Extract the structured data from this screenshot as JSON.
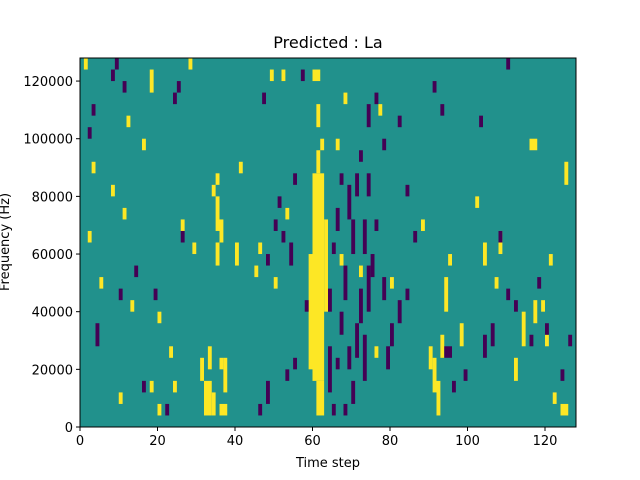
{
  "chart_data": {
    "type": "heatmap",
    "title": "Predicted : La",
    "xlabel": "Time step",
    "ylabel": "Frequency (Hz)",
    "xlim": [
      0,
      128
    ],
    "ylim": [
      0,
      128000
    ],
    "x_ticks": [
      0,
      20,
      40,
      60,
      80,
      100,
      120
    ],
    "y_ticks": [
      0,
      20000,
      40000,
      60000,
      80000,
      100000,
      120000
    ],
    "x_tick_labels": [
      "0",
      "20",
      "40",
      "60",
      "80",
      "100",
      "120"
    ],
    "y_tick_labels": [
      "0",
      "20000",
      "40000",
      "60000",
      "80000",
      "100000",
      "120000"
    ],
    "grid": false,
    "colors": {
      "background": "#21918c",
      "high": "#fde725",
      "low": "#440154"
    },
    "cells_note_units": "each cell = [time_step_start, time_step_end, freq_start_hz, freq_end_hz, level] where level 1=high, -1=low",
    "cells": [
      [
        60,
        63,
        16000,
        88000,
        1
      ],
      [
        61,
        63,
        4000,
        16000,
        1
      ],
      [
        61,
        62,
        88000,
        96000,
        1
      ],
      [
        62,
        63,
        96000,
        100000,
        1
      ],
      [
        59,
        60,
        20000,
        60000,
        1
      ],
      [
        63,
        64,
        40000,
        72000,
        1
      ],
      [
        60,
        62,
        120000,
        124000,
        1
      ],
      [
        61,
        62,
        104000,
        112000,
        1
      ],
      [
        32,
        34,
        4000,
        16000,
        1
      ],
      [
        34,
        35,
        4000,
        12000,
        1
      ],
      [
        36,
        38,
        4000,
        8000,
        1
      ],
      [
        37,
        38,
        12000,
        24000,
        1
      ],
      [
        31,
        32,
        16000,
        24000,
        1
      ],
      [
        33,
        34,
        20000,
        28000,
        1
      ],
      [
        36,
        37,
        20000,
        24000,
        1
      ],
      [
        35,
        36,
        68000,
        80000,
        1
      ],
      [
        35,
        36,
        56000,
        64000,
        1
      ],
      [
        36,
        37,
        64000,
        72000,
        1
      ],
      [
        40,
        41,
        56000,
        64000,
        1
      ],
      [
        41,
        42,
        88000,
        92000,
        1
      ],
      [
        35,
        36,
        88000,
        84000,
        1
      ],
      [
        34,
        35,
        80000,
        84000,
        1
      ],
      [
        29,
        30,
        60000,
        64000,
        1
      ],
      [
        26,
        27,
        68000,
        72000,
        1
      ],
      [
        13,
        14,
        40000,
        44000,
        1
      ],
      [
        20,
        21,
        36000,
        40000,
        1
      ],
      [
        23,
        24,
        24000,
        28000,
        1
      ],
      [
        18,
        19,
        12000,
        16000,
        1
      ],
      [
        24,
        25,
        12000,
        16000,
        1
      ],
      [
        20,
        21,
        8000,
        4000,
        1
      ],
      [
        10,
        11,
        8000,
        12000,
        1
      ],
      [
        2,
        3,
        64000,
        68000,
        1
      ],
      [
        5,
        6,
        48000,
        52000,
        1
      ],
      [
        11,
        12,
        72000,
        76000,
        1
      ],
      [
        3,
        4,
        88000,
        92000,
        1
      ],
      [
        8,
        9,
        80000,
        84000,
        1
      ],
      [
        12,
        13,
        104000,
        108000,
        1
      ],
      [
        18,
        19,
        116000,
        124000,
        1
      ],
      [
        28,
        29,
        124000,
        128000,
        1
      ],
      [
        1,
        2,
        124000,
        128000,
        1
      ],
      [
        16,
        17,
        96000,
        100000,
        1
      ],
      [
        90,
        91,
        20000,
        28000,
        1
      ],
      [
        91,
        92,
        12000,
        24000,
        1
      ],
      [
        92,
        93,
        4000,
        16000,
        1
      ],
      [
        93,
        94,
        24000,
        32000,
        1
      ],
      [
        94,
        95,
        40000,
        52000,
        1
      ],
      [
        95,
        96,
        56000,
        60000,
        1
      ],
      [
        98,
        99,
        28000,
        36000,
        1
      ],
      [
        104,
        105,
        56000,
        64000,
        1
      ],
      [
        108,
        109,
        60000,
        68000,
        1
      ],
      [
        112,
        113,
        16000,
        24000,
        1
      ],
      [
        114,
        115,
        28000,
        40000,
        1
      ],
      [
        117,
        118,
        36000,
        44000,
        1
      ],
      [
        119,
        120,
        40000,
        44000,
        1
      ],
      [
        120,
        121,
        28000,
        32000,
        1
      ],
      [
        121,
        122,
        56000,
        60000,
        1
      ],
      [
        116,
        118,
        96000,
        100000,
        1
      ],
      [
        125,
        126,
        84000,
        92000,
        1
      ],
      [
        124,
        126,
        8000,
        4000,
        1
      ],
      [
        122,
        123,
        8000,
        12000,
        1
      ],
      [
        107,
        108,
        48000,
        52000,
        1
      ],
      [
        102,
        103,
        76000,
        80000,
        1
      ],
      [
        88,
        89,
        68000,
        72000,
        1
      ],
      [
        80,
        81,
        48000,
        52000,
        1
      ],
      [
        77,
        78,
        108000,
        112000,
        1
      ],
      [
        68,
        69,
        112000,
        116000,
        1
      ],
      [
        66,
        67,
        96000,
        100000,
        1
      ],
      [
        67,
        68,
        56000,
        60000,
        1
      ],
      [
        72,
        73,
        52000,
        56000,
        1
      ],
      [
        76,
        77,
        24000,
        28000,
        1
      ],
      [
        46,
        47,
        60000,
        64000,
        1
      ],
      [
        50,
        51,
        48000,
        52000,
        1
      ],
      [
        45,
        46,
        52000,
        56000,
        1
      ],
      [
        53,
        54,
        72000,
        76000,
        1
      ],
      [
        49,
        50,
        120000,
        124000,
        1
      ],
      [
        52,
        53,
        124000,
        120000,
        1
      ],
      [
        64,
        65,
        12000,
        28000,
        -1
      ],
      [
        65,
        66,
        4000,
        8000,
        -1
      ],
      [
        66,
        67,
        20000,
        24000,
        -1
      ],
      [
        67,
        68,
        32000,
        40000,
        -1
      ],
      [
        68,
        69,
        44000,
        56000,
        -1
      ],
      [
        69,
        70,
        20000,
        28000,
        -1
      ],
      [
        70,
        71,
        8000,
        16000,
        -1
      ],
      [
        71,
        72,
        24000,
        36000,
        -1
      ],
      [
        72,
        73,
        36000,
        48000,
        -1
      ],
      [
        73,
        74,
        16000,
        32000,
        -1
      ],
      [
        73,
        74,
        60000,
        72000,
        -1
      ],
      [
        74,
        75,
        40000,
        56000,
        -1
      ],
      [
        75,
        76,
        52000,
        60000,
        -1
      ],
      [
        70,
        71,
        60000,
        72000,
        -1
      ],
      [
        69,
        70,
        72000,
        84000,
        -1
      ],
      [
        71,
        72,
        80000,
        88000,
        -1
      ],
      [
        67,
        68,
        84000,
        88000,
        -1
      ],
      [
        66,
        67,
        68000,
        76000,
        -1
      ],
      [
        65,
        66,
        60000,
        64000,
        -1
      ],
      [
        64,
        65,
        40000,
        48000,
        -1
      ],
      [
        68,
        69,
        4000,
        8000,
        -1
      ],
      [
        74,
        75,
        80000,
        88000,
        -1
      ],
      [
        76,
        77,
        68000,
        72000,
        -1
      ],
      [
        78,
        79,
        44000,
        52000,
        -1
      ],
      [
        80,
        81,
        28000,
        36000,
        -1
      ],
      [
        82,
        83,
        36000,
        44000,
        -1
      ],
      [
        79,
        80,
        20000,
        28000,
        -1
      ],
      [
        84,
        85,
        44000,
        48000,
        -1
      ],
      [
        86,
        87,
        64000,
        68000,
        -1
      ],
      [
        84,
        85,
        80000,
        84000,
        -1
      ],
      [
        72,
        73,
        92000,
        96000,
        -1
      ],
      [
        74,
        75,
        104000,
        112000,
        -1
      ],
      [
        76,
        77,
        112000,
        116000,
        -1
      ],
      [
        78,
        79,
        96000,
        100000,
        -1
      ],
      [
        82,
        83,
        104000,
        108000,
        -1
      ],
      [
        54,
        55,
        56000,
        64000,
        -1
      ],
      [
        52,
        53,
        64000,
        68000,
        -1
      ],
      [
        50,
        51,
        68000,
        72000,
        -1
      ],
      [
        48,
        49,
        56000,
        60000,
        -1
      ],
      [
        51,
        52,
        76000,
        80000,
        -1
      ],
      [
        55,
        56,
        84000,
        88000,
        -1
      ],
      [
        58,
        59,
        40000,
        44000,
        -1
      ],
      [
        55,
        56,
        20000,
        24000,
        -1
      ],
      [
        53,
        54,
        16000,
        20000,
        -1
      ],
      [
        48,
        49,
        8000,
        16000,
        -1
      ],
      [
        46,
        47,
        4000,
        8000,
        -1
      ],
      [
        57,
        58,
        120000,
        124000,
        -1
      ],
      [
        47,
        48,
        112000,
        116000,
        -1
      ],
      [
        22,
        23,
        4000,
        8000,
        -1
      ],
      [
        16,
        17,
        12000,
        16000,
        -1
      ],
      [
        10,
        11,
        44000,
        48000,
        -1
      ],
      [
        14,
        15,
        52000,
        56000,
        -1
      ],
      [
        4,
        5,
        28000,
        36000,
        -1
      ],
      [
        2,
        3,
        100000,
        104000,
        -1
      ],
      [
        3,
        4,
        108000,
        112000,
        -1
      ],
      [
        8,
        9,
        120000,
        124000,
        -1
      ],
      [
        11,
        12,
        116000,
        120000,
        -1
      ],
      [
        19,
        20,
        44000,
        48000,
        -1
      ],
      [
        9,
        10,
        124000,
        128000,
        -1
      ],
      [
        24,
        25,
        112000,
        116000,
        -1
      ],
      [
        26,
        27,
        64000,
        68000,
        -1
      ],
      [
        25,
        26,
        116000,
        120000,
        -1
      ],
      [
        94,
        96,
        24000,
        28000,
        -1
      ],
      [
        96,
        97,
        12000,
        16000,
        -1
      ],
      [
        99,
        100,
        16000,
        20000,
        -1
      ],
      [
        104,
        105,
        24000,
        32000,
        -1
      ],
      [
        106,
        107,
        28000,
        36000,
        -1
      ],
      [
        108,
        109,
        64000,
        68000,
        -1
      ],
      [
        110,
        111,
        44000,
        48000,
        -1
      ],
      [
        112,
        113,
        40000,
        44000,
        -1
      ],
      [
        116,
        117,
        28000,
        32000,
        -1
      ],
      [
        118,
        119,
        48000,
        52000,
        -1
      ],
      [
        120,
        121,
        32000,
        36000,
        -1
      ],
      [
        124,
        125,
        16000,
        20000,
        -1
      ],
      [
        126,
        127,
        28000,
        32000,
        -1
      ],
      [
        103,
        104,
        104000,
        108000,
        -1
      ],
      [
        110,
        111,
        124000,
        128000,
        -1
      ],
      [
        93,
        94,
        108000,
        112000,
        -1
      ],
      [
        91,
        92,
        116000,
        120000,
        -1
      ]
    ]
  }
}
